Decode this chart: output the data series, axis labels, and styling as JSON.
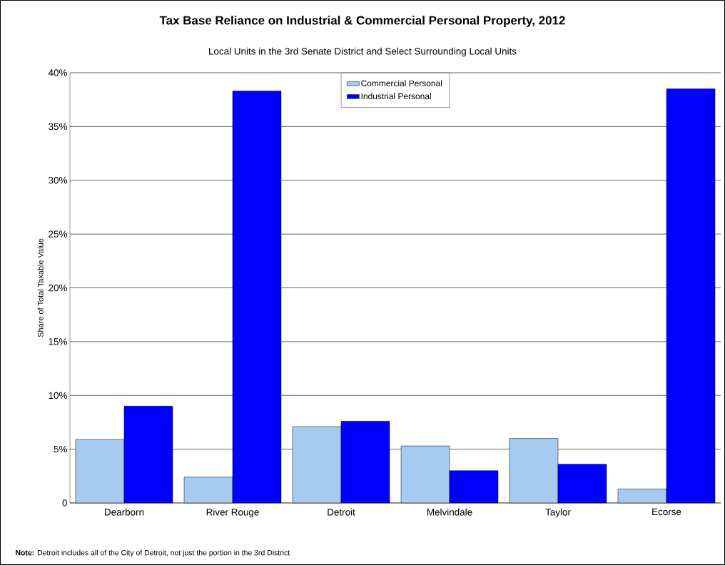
{
  "chart_data": {
    "type": "bar",
    "title": "Tax Base Reliance on Industrial & Commercial Personal Property, 2012",
    "subtitle": "Local Units in the 3rd Senate District and Select Surrounding Local Units",
    "ylabel": "Share of Total Taxable Value",
    "categories": [
      "Dearborn",
      "River Rouge",
      "Detroit",
      "Melvindale",
      "Taylor",
      "Ecorse"
    ],
    "series": [
      {
        "name": "Commercial Personal",
        "color": "#a6caf0",
        "values": [
          5.9,
          2.4,
          7.1,
          5.3,
          6.0,
          1.3
        ]
      },
      {
        "name": "Industrial Personal",
        "color": "#0000ff",
        "values": [
          9.0,
          38.3,
          7.6,
          3.0,
          3.6,
          38.5
        ]
      }
    ],
    "ylim": [
      0,
      40
    ],
    "yticks": [
      0,
      {
        "value": 5,
        "label": "5%"
      },
      {
        "value": 10,
        "label": "10%"
      },
      {
        "value": 15,
        "label": "15%"
      },
      {
        "value": 20,
        "label": "20%"
      },
      {
        "value": 25,
        "label": "25%"
      },
      {
        "value": 30,
        "label": "30%"
      },
      {
        "value": 35,
        "label": "35%"
      },
      {
        "value": 40,
        "label": "40%"
      }
    ],
    "grid": "y",
    "legend": "top",
    "annotations": [
      "**Note:** Detroit includes all of the City of Detroit, not just the portion in the 3rd District"
    ]
  }
}
